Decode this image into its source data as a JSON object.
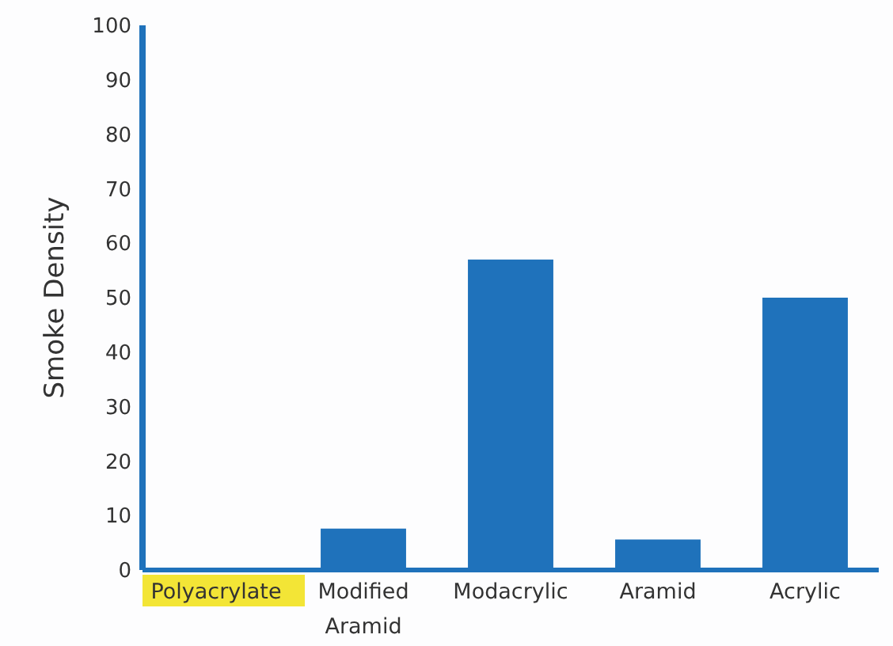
{
  "chart_data": {
    "type": "bar",
    "ylabel": "Smoke Density",
    "categories": [
      "Polyacrylate",
      "Modified Aramid",
      "Modacrylic",
      "Aramid",
      "Acrylic"
    ],
    "values": [
      0,
      7.6,
      57,
      5.6,
      50
    ],
    "color": "#1f72bb",
    "ylim": [
      0,
      100
    ],
    "yticks": [
      0,
      10,
      20,
      30,
      40,
      50,
      60,
      70,
      80,
      90,
      100
    ],
    "grid": false
  }
}
